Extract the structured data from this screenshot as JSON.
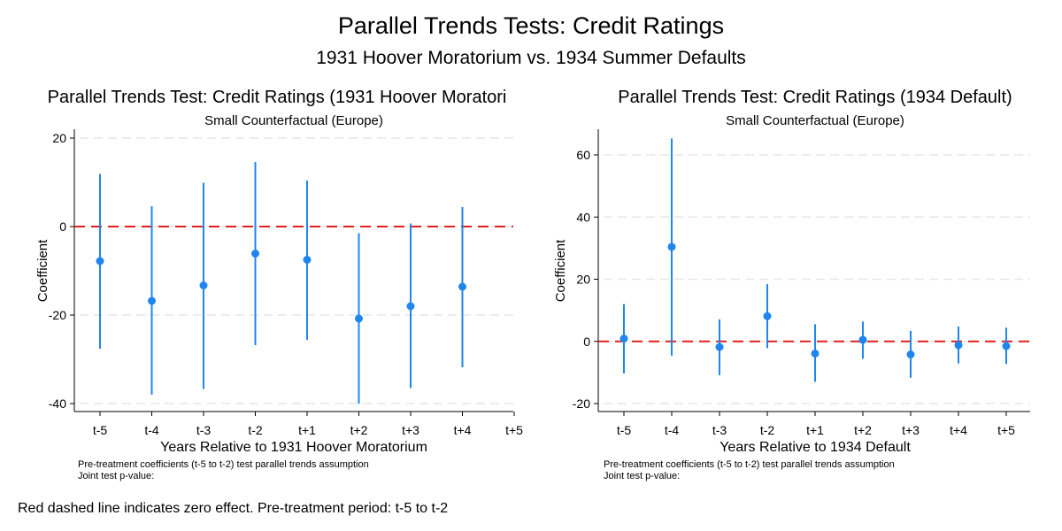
{
  "page": {
    "title": "Parallel Trends Tests: Credit Ratings",
    "subtitle": "1931 Hoover Moratorium vs. 1934 Summer Defaults",
    "footer_note": "Red dashed line indicates zero effect. Pre-treatment period: t-5 to t-2"
  },
  "colors": {
    "series": "#1f86f0",
    "zero_line": "#e0201c",
    "grid": "#e6e6e6",
    "axis": "#000000"
  },
  "chart_data": [
    {
      "type": "scatter",
      "title": "Parallel Trends Test: Credit Ratings (1931 Hoover Moratori",
      "subtitle": "Small Counterfactual (Europe)",
      "xlabel": "Years Relative to 1931 Hoover Moratorium",
      "ylabel": "Coefficient",
      "categories": [
        "t-5",
        "t-4",
        "t-3",
        "t-2",
        "t+1",
        "t+2",
        "t+3",
        "t+4",
        "t+5"
      ],
      "y_ticks": [
        20,
        0,
        -20,
        -40
      ],
      "y_tick_labels": [
        "20",
        "0",
        "-20",
        "-40"
      ],
      "ylim": [
        -40,
        20
      ],
      "grid": true,
      "zero_line": true,
      "series": [
        {
          "estimates": [
            -7.8,
            -16.8,
            -13.3,
            -6.1,
            -7.5,
            -20.8,
            -18,
            -13.6,
            null
          ],
          "ci_low": [
            -27.6,
            -38,
            -36.7,
            -26.8,
            -25.6,
            -40,
            -36.5,
            -31.8,
            null
          ],
          "ci_high": [
            11.9,
            4.6,
            9.9,
            14.6,
            10.4,
            -1.5,
            0.7,
            4.4,
            null
          ]
        }
      ],
      "notes": [
        "Pre-treatment coefficients (t-5 to t-2) test parallel trends assumption",
        "Joint test p-value:"
      ]
    },
    {
      "type": "scatter",
      "title": "Parallel Trends Test: Credit Ratings (1934 Default)",
      "subtitle": "Small Counterfactual (Europe)",
      "xlabel": "Years Relative to 1934 Default",
      "ylabel": "Coefficient",
      "categories": [
        "t-5",
        "t-4",
        "t-3",
        "t-2",
        "t+1",
        "t+2",
        "t+3",
        "t+4",
        "t+5"
      ],
      "y_ticks": [
        60,
        40,
        20,
        0,
        -20
      ],
      "y_tick_labels": [
        "60",
        "40",
        "20",
        "0",
        "-20"
      ],
      "ylim": [
        -20,
        60
      ],
      "grid": true,
      "zero_line": true,
      "series": [
        {
          "estimates": [
            0.9,
            30.4,
            -1.8,
            8.1,
            -3.9,
            0.5,
            -4.2,
            -1.2,
            -1.5
          ],
          "ci_low": [
            -10.3,
            -4.6,
            -10.9,
            -2.2,
            -13,
            -5.6,
            -11.7,
            -7.1,
            -7.3
          ],
          "ci_high": [
            12,
            65.3,
            7.1,
            18.4,
            5.5,
            6.4,
            3.4,
            4.8,
            4.4
          ]
        }
      ],
      "notes": [
        "Pre-treatment coefficients (t-5 to t-2) test parallel trends assumption",
        "Joint test p-value:"
      ]
    }
  ]
}
